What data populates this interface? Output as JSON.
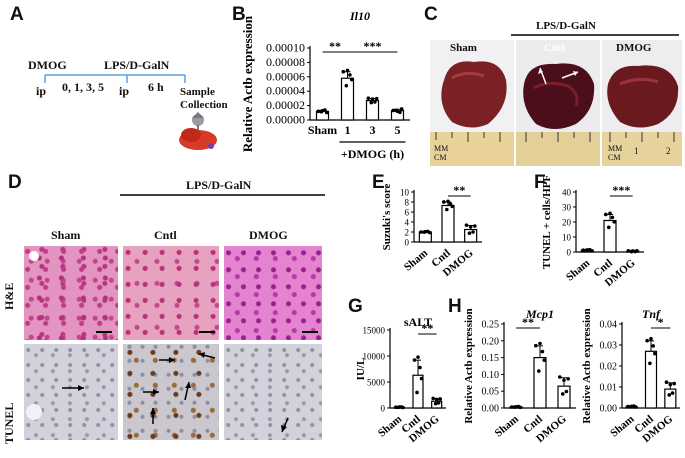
{
  "panels": {
    "A": "A",
    "B": "B",
    "C": "C",
    "D": "D",
    "E": "E",
    "F": "F",
    "G": "G",
    "H": "H"
  },
  "panelA": {
    "dmog": "DMOG",
    "lps": "LPS/D-GalN",
    "ip1": "ip",
    "days": "0, 1, 3, 5",
    "ip2": "ip",
    "hours": "6 h",
    "sample": "Sample",
    "collection": "Collection"
  },
  "panelC": {
    "group": "LPS/D-GalN",
    "sham": "Sham",
    "cntl": "Cntl",
    "dmog": "DMOG",
    "ruler_mm": "MM",
    "ruler_cm": "CM",
    "ruler_1": "1",
    "ruler_2": "2"
  },
  "panelD": {
    "group": "LPS/D-GalN",
    "sham": "Sham",
    "cntl": "Cntl",
    "dmog": "DMOG",
    "row_he": "H&E",
    "row_tunel": "TUNEL"
  },
  "charts": {
    "B": {
      "title": "Il10",
      "ylabel": "Relative Actb expression",
      "xcaption": "+DMOG (h)",
      "type": "bar",
      "categories": [
        "Sham",
        "1",
        "3",
        "5"
      ],
      "values": [
        1.2e-05,
        5.8e-05,
        2.7e-05,
        1.3e-05
      ],
      "errors": [
        1.5e-06,
        9e-06,
        3e-06,
        2e-06
      ],
      "ticks": [
        "0.00000",
        "0.00002",
        "0.00004",
        "0.00006",
        "0.00008",
        "0.00010"
      ],
      "ylim": [
        0,
        0.0001
      ],
      "sig": [
        {
          "label": "**",
          "from": 0,
          "to": 1
        },
        {
          "label": "***",
          "from": 1,
          "to": 3
        }
      ]
    },
    "E": {
      "title": "",
      "ylabel": "Suzuki's score",
      "type": "bar",
      "categories": [
        "Sham",
        "Cntl",
        "DMOG"
      ],
      "values": [
        2,
        7.3,
        2.5
      ],
      "errors": [
        0.1,
        0.7,
        0.8
      ],
      "ticks": [
        "0",
        "2",
        "4",
        "6",
        "8",
        "10"
      ],
      "ylim": [
        0,
        10
      ],
      "sig": [
        {
          "label": "**",
          "from": 1,
          "to": 2
        }
      ]
    },
    "F": {
      "title": "",
      "ylabel": "TUNEL + cells/HPF",
      "type": "bar",
      "categories": [
        "Sham",
        "Cntl",
        "DMOG"
      ],
      "values": [
        1.2,
        21,
        0.5
      ],
      "errors": [
        0.3,
        4,
        0.3
      ],
      "ticks": [
        "0",
        "10",
        "20",
        "30",
        "40"
      ],
      "ylim": [
        0,
        40
      ],
      "sig": [
        {
          "label": "***",
          "from": 1,
          "to": 2
        }
      ]
    },
    "G": {
      "title": "sALT",
      "ylabel": "IU/L",
      "type": "bar",
      "categories": [
        "Sham",
        "Cntl",
        "DMOG"
      ],
      "values": [
        150,
        6300,
        1300
      ],
      "errors": [
        50,
        2900,
        500
      ],
      "ticks": [
        "0",
        "5000",
        "10000",
        "15000"
      ],
      "ylim": [
        0,
        15000
      ],
      "sig": [
        {
          "label": "**",
          "from": 1,
          "to": 2
        }
      ]
    },
    "Hmcp": {
      "title": "Mcp1",
      "ylabel": "Relative Actb expression",
      "type": "bar",
      "categories": [
        "Sham",
        "Cntl",
        "DMOG"
      ],
      "values": [
        0.003,
        0.15,
        0.065
      ],
      "errors": [
        0.001,
        0.035,
        0.025
      ],
      "ticks": [
        "0.00",
        "0.05",
        "0.10",
        "0.15",
        "0.20",
        "0.25"
      ],
      "ylim": [
        0,
        0.25
      ],
      "sig": [
        {
          "label": "**",
          "from": 0,
          "to": 1
        }
      ]
    },
    "Htnf": {
      "title": "Tnf",
      "ylabel": "Relative Actb expression",
      "type": "bar",
      "categories": [
        "Sham",
        "Cntl",
        "DMOG"
      ],
      "values": [
        0.0007,
        0.027,
        0.009
      ],
      "errors": [
        0.0002,
        0.005,
        0.003
      ],
      "ticks": [
        "0.00",
        "0.01",
        "0.02",
        "0.03",
        "0.04"
      ],
      "ylim": [
        0,
        0.04
      ],
      "sig": [
        {
          "label": "*",
          "from": 1,
          "to": 2
        }
      ]
    }
  }
}
